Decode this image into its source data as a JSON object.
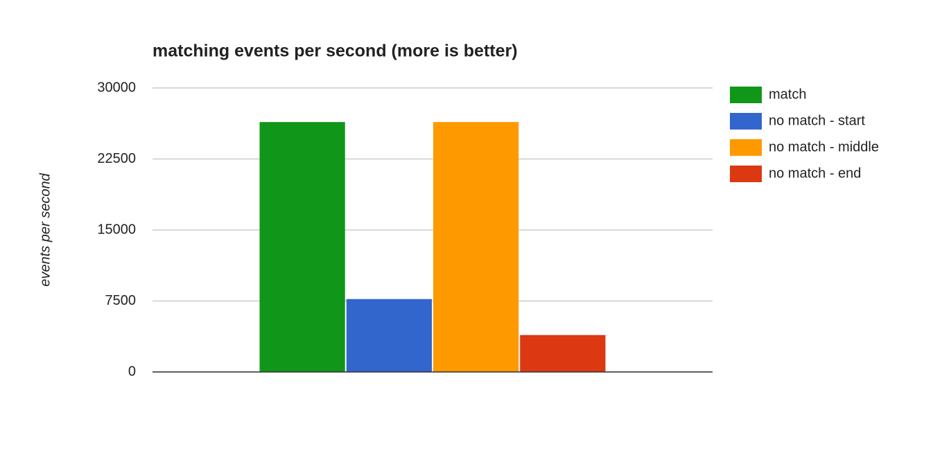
{
  "chart_data": {
    "type": "bar",
    "title": "matching events per second (more is better)",
    "y_label": "events per second",
    "categories": [
      null
    ],
    "series": [
      {
        "name": "match",
        "color": "#109618",
        "values": [
          26400
        ]
      },
      {
        "name": "no match - start",
        "color": "#3366cc",
        "values": [
          7700
        ]
      },
      {
        "name": "no match - middle",
        "color": "#ff9900",
        "values": [
          26400
        ]
      },
      {
        "name": "no match - end",
        "color": "#dc3912",
        "values": [
          3900
        ]
      }
    ],
    "ylim": [
      0,
      30000
    ],
    "yticks": [
      0,
      7500,
      15000,
      22500,
      30000
    ],
    "grid": true,
    "legend": "right"
  }
}
